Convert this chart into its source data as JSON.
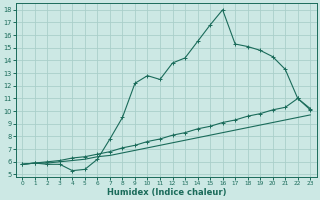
{
  "xlabel": "Humidex (Indice chaleur)",
  "bg_color": "#cce8e4",
  "line_color": "#1a6b5a",
  "grid_color": "#aacfca",
  "xlim": [
    -0.5,
    23.5
  ],
  "ylim": [
    4.8,
    18.5
  ],
  "xticks": [
    0,
    1,
    2,
    3,
    4,
    5,
    6,
    7,
    8,
    9,
    10,
    11,
    12,
    13,
    14,
    15,
    16,
    17,
    18,
    19,
    20,
    21,
    22,
    23
  ],
  "yticks": [
    5,
    6,
    7,
    8,
    9,
    10,
    11,
    12,
    13,
    14,
    15,
    16,
    17,
    18
  ],
  "curve1_x": [
    0,
    1,
    2,
    3,
    4,
    5,
    6,
    7,
    8,
    9,
    10,
    11,
    12,
    13,
    14,
    15,
    16,
    17,
    18,
    19,
    20,
    21,
    22,
    23
  ],
  "curve1_y": [
    5.8,
    5.9,
    5.8,
    5.8,
    5.3,
    5.4,
    6.2,
    7.8,
    9.5,
    12.2,
    12.8,
    12.5,
    13.8,
    14.2,
    15.5,
    16.8,
    18.0,
    15.3,
    15.1,
    14.8,
    14.3,
    13.3,
    11.0,
    10.1
  ],
  "curve2_x": [
    0,
    1,
    2,
    3,
    4,
    5,
    6,
    7,
    8,
    9,
    10,
    11,
    12,
    13,
    14,
    15,
    16,
    17,
    18,
    19,
    20,
    21,
    22,
    23
  ],
  "curve2_y": [
    5.8,
    5.9,
    6.0,
    6.1,
    6.3,
    6.4,
    6.6,
    6.8,
    7.1,
    7.3,
    7.6,
    7.8,
    8.1,
    8.3,
    8.6,
    8.8,
    9.1,
    9.3,
    9.6,
    9.8,
    10.1,
    10.3,
    11.0,
    10.2
  ],
  "curve3_x": [
    0,
    1,
    2,
    3,
    4,
    5,
    6,
    7,
    8,
    9,
    10,
    11,
    12,
    13,
    14,
    15,
    16,
    17,
    18,
    19,
    20,
    21,
    22,
    23
  ],
  "curve3_y": [
    5.8,
    5.9,
    5.9,
    6.0,
    6.1,
    6.2,
    6.4,
    6.5,
    6.7,
    6.9,
    7.1,
    7.3,
    7.5,
    7.7,
    7.9,
    8.1,
    8.3,
    8.5,
    8.7,
    8.9,
    9.1,
    9.3,
    9.5,
    9.7
  ]
}
